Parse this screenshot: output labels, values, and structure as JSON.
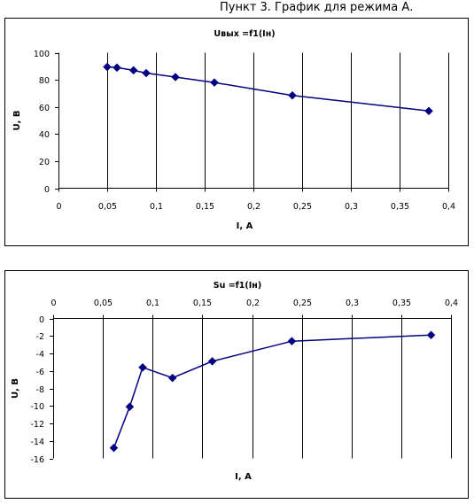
{
  "page_title": "Пункт 3. График для режима А.",
  "chart_data": [
    {
      "type": "line",
      "title": "Uвых =f1(Iн)",
      "xlabel": "I, A",
      "ylabel": "U, B",
      "xlim": [
        0,
        0.4
      ],
      "ylim": [
        0,
        100
      ],
      "x_ticks": [
        "0",
        "0,05",
        "0,1",
        "0,15",
        "0,2",
        "0,25",
        "0,3",
        "0,35",
        "0,4"
      ],
      "y_ticks": [
        "0",
        "20",
        "40",
        "60",
        "80",
        "100"
      ],
      "grid": "vertical",
      "marker": "diamond",
      "color": "#000080",
      "x": [
        0.05,
        0.06,
        0.077,
        0.09,
        0.12,
        0.16,
        0.24,
        0.38
      ],
      "y": [
        89.5,
        89,
        87,
        85,
        82,
        78,
        68.5,
        57
      ]
    },
    {
      "type": "line",
      "title": "Su =f1(Iн)",
      "xlabel": "I, A",
      "ylabel": "U, B",
      "xlim": [
        0,
        0.4
      ],
      "ylim": [
        -16,
        0
      ],
      "x_axis_position": "top",
      "x_ticks": [
        "0",
        "0,05",
        "0,1",
        "0,15",
        "0,2",
        "0,25",
        "0,3",
        "0,35",
        "0,4"
      ],
      "y_ticks": [
        "0",
        "-2",
        "-4",
        "-6",
        "-8",
        "-10",
        "-12",
        "-14",
        "-16"
      ],
      "grid": "vertical",
      "marker": "diamond",
      "color": "#000080",
      "x": [
        0.061,
        0.077,
        0.09,
        0.12,
        0.16,
        0.24,
        0.38
      ],
      "y": [
        -14.8,
        -10.1,
        -5.6,
        -6.8,
        -4.9,
        -2.6,
        -1.9
      ]
    }
  ]
}
